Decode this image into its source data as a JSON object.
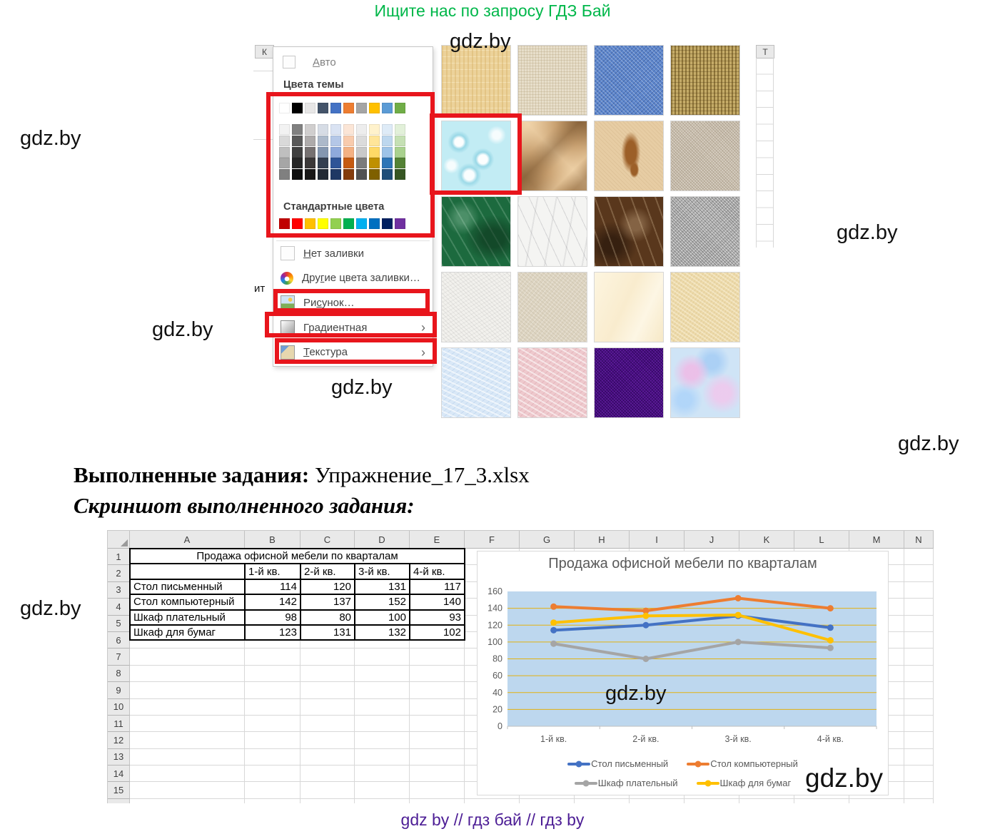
{
  "promo": {
    "top_text": "Ищите нас по запросу ГДЗ Бай",
    "footer_text": "gdz by  //  гдз бай  //  гдз by"
  },
  "watermark": {
    "text": "gdz.by"
  },
  "sheet_fragments": {
    "left_col": "К",
    "right_col": "T",
    "left_text": "ит"
  },
  "fill_menu": {
    "auto_label": "Авто",
    "auto_accel": "А",
    "theme_header": "Цвета темы",
    "standard_header": "Стандартные цвета",
    "theme_columns": [
      {
        "base": "#FFFFFF",
        "tints": [
          "#F2F2F2",
          "#D9D9D9",
          "#BFBFBF",
          "#A6A6A6",
          "#808080"
        ]
      },
      {
        "base": "#000000",
        "tints": [
          "#808080",
          "#595959",
          "#404040",
          "#262626",
          "#0D0D0D"
        ]
      },
      {
        "base": "#E7E6E6",
        "tints": [
          "#D0CECE",
          "#AEABAB",
          "#767171",
          "#3B3838",
          "#181717"
        ]
      },
      {
        "base": "#44546A",
        "tints": [
          "#D6DCE5",
          "#ACB9CA",
          "#8497B0",
          "#333F50",
          "#222A35"
        ]
      },
      {
        "base": "#4472C4",
        "tints": [
          "#DAE3F3",
          "#B4C7E7",
          "#8FAADC",
          "#2F5597",
          "#1F3864"
        ]
      },
      {
        "base": "#ED7D31",
        "tints": [
          "#FBE5D6",
          "#F8CBAD",
          "#F4B183",
          "#C55A11",
          "#843C0C"
        ]
      },
      {
        "base": "#A5A5A5",
        "tints": [
          "#EDEDED",
          "#DBDBDB",
          "#C9C9C9",
          "#7B7B7B",
          "#525252"
        ]
      },
      {
        "base": "#FFC000",
        "tints": [
          "#FFF2CC",
          "#FFE599",
          "#FFD966",
          "#BF9000",
          "#7F6000"
        ]
      },
      {
        "base": "#5B9BD5",
        "tints": [
          "#DEEBF7",
          "#BDD7EE",
          "#9DC3E8",
          "#2E75B6",
          "#1F4E79"
        ]
      },
      {
        "base": "#70AD47",
        "tints": [
          "#E2F0D9",
          "#C5E0B4",
          "#A9D18E",
          "#548235",
          "#375623"
        ]
      }
    ],
    "standard_colors": [
      "#C00000",
      "#FF0000",
      "#FFC000",
      "#FFFF00",
      "#92D050",
      "#00B050",
      "#00B0F0",
      "#0070C0",
      "#002060",
      "#7030A0"
    ],
    "items": [
      {
        "id": "no-fill",
        "label": "Нет заливки",
        "accel": "Н",
        "icon": "checkbox",
        "submenu": false
      },
      {
        "id": "more-colors",
        "label": "Другие цвета заливки…",
        "accel": "г",
        "icon": "palette",
        "submenu": false
      },
      {
        "id": "picture",
        "label": "Рисунок…",
        "accel": "с",
        "icon": "picture",
        "submenu": false
      },
      {
        "id": "gradient",
        "label": "Градиентная",
        "accel": "",
        "icon": "gradient",
        "submenu": true
      },
      {
        "id": "texture",
        "label": "Текстура",
        "accel": "Т",
        "icon": "texture",
        "submenu": true
      }
    ]
  },
  "texture_gallery": {
    "selected_index": 4,
    "textures": [
      {
        "id": "papyrus"
      },
      {
        "id": "canvas"
      },
      {
        "id": "denim"
      },
      {
        "id": "woven-mat"
      },
      {
        "id": "water-droplets"
      },
      {
        "id": "paper-bag"
      },
      {
        "id": "fish-fossil"
      },
      {
        "id": "sand"
      },
      {
        "id": "green-marble"
      },
      {
        "id": "white-marble"
      },
      {
        "id": "brown-marble"
      },
      {
        "id": "granite"
      },
      {
        "id": "newsprint"
      },
      {
        "id": "recycled-paper"
      },
      {
        "id": "parchment"
      },
      {
        "id": "stationery"
      },
      {
        "id": "blue-tissue-paper"
      },
      {
        "id": "pink-tissue-paper"
      },
      {
        "id": "purple-mesh"
      },
      {
        "id": "bouquet"
      }
    ]
  },
  "answer": {
    "label": "Выполненные задания:",
    "file": " Упражнение_17_3.xlsx",
    "screenshot_label": "Скриншот выполненного задания:"
  },
  "spreadsheet": {
    "columns": [
      "A",
      "B",
      "C",
      "D",
      "E",
      "F",
      "G",
      "H",
      "I",
      "J",
      "K",
      "L",
      "M",
      "N"
    ],
    "visible_rows": 15,
    "table": {
      "title": "Продажа офисной мебели по кварталам",
      "quarter_headers": [
        "1-й кв.",
        "2-й кв.",
        "3-й кв.",
        "4-й кв."
      ],
      "rows": [
        [
          "Стол письменный",
          114,
          120,
          131,
          117
        ],
        [
          "Стол компьютерный",
          142,
          137,
          152,
          140
        ],
        [
          "Шкаф плательный",
          98,
          80,
          100,
          93
        ],
        [
          "Шкаф для бумаг",
          123,
          131,
          132,
          102
        ]
      ]
    }
  },
  "chart_data": {
    "type": "line",
    "title": "Продажа офисной мебели по кварталам",
    "categories": [
      "1-й кв.",
      "2-й кв.",
      "3-й кв.",
      "4-й кв."
    ],
    "series": [
      {
        "name": "Стол письменный",
        "color": "#4472C4",
        "values": [
          114,
          120,
          131,
          117
        ]
      },
      {
        "name": "Стол компьютерный",
        "color": "#ED7D31",
        "values": [
          142,
          137,
          152,
          140
        ]
      },
      {
        "name": "Шкаф плательный",
        "color": "#A5A5A5",
        "values": [
          98,
          80,
          100,
          93
        ]
      },
      {
        "name": "Шкаф для бумаг",
        "color": "#FFC000",
        "values": [
          123,
          131,
          132,
          102
        ]
      }
    ],
    "ylim": [
      0,
      160
    ],
    "ytick_step": 20,
    "grid": true,
    "plot_bg": "#BDD7EE",
    "gridline_color": "#E3B210",
    "axis_color": "#BFBFBF",
    "legend_position": "bottom"
  }
}
